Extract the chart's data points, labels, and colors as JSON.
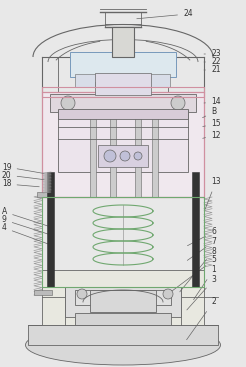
{
  "bg_color": "#e8e8e8",
  "line_color": "#666666",
  "figsize": [
    2.46,
    3.67
  ],
  "dpi": 100,
  "pink": "#d090a0",
  "green": "#70a870",
  "gray_fill": "#d8d8d8",
  "light_fill": "#e8e8e0",
  "dark_rod": "#333333"
}
